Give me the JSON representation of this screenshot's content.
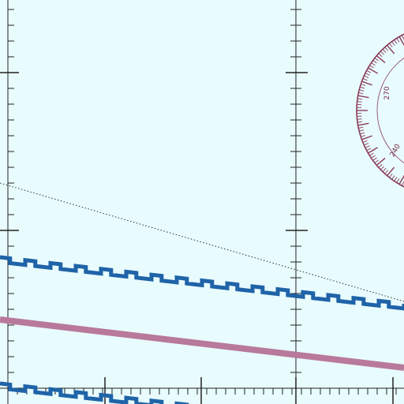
{
  "chart": {
    "kind": "nautical-chart-fragment",
    "colors": {
      "water": "#e8fbfd",
      "graticule": "#222222",
      "compass_rose": "#8a3a5a",
      "route_blue": "#1f63a8",
      "route_magenta": "#b8799a",
      "dotted_track": "#333333"
    },
    "compass_rose": {
      "labels": [
        "270",
        "240"
      ]
    }
  }
}
